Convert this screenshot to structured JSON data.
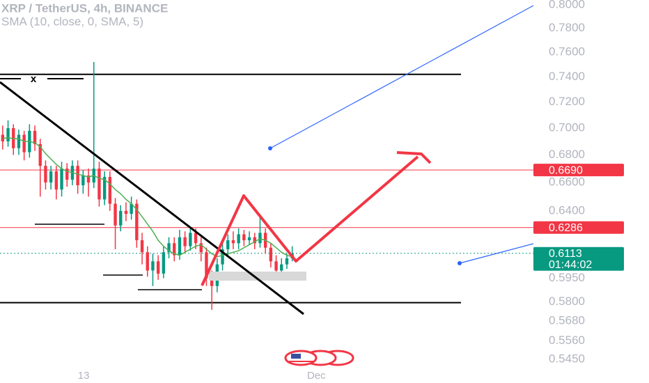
{
  "chart_data": {
    "type": "candlestick",
    "title": "XRP / TetherUS, 4h, BINANCE",
    "log_scale": true,
    "up_color": "#089981",
    "down_color": "#f23645",
    "xlim": [
      -0.5,
      98.2
    ],
    "xticks": [
      {
        "value": 15.1,
        "label": "13"
      },
      {
        "value": 58.5,
        "label": "Dec"
      }
    ],
    "ylim": [
      0.5312,
      0.8042
    ],
    "yticks": [
      {
        "value": 0.8,
        "label": "0.8000"
      },
      {
        "value": 0.78,
        "label": "0.7800"
      },
      {
        "value": 0.76,
        "label": "0.7600"
      },
      {
        "value": 0.74,
        "label": "0.7400"
      },
      {
        "value": 0.72,
        "label": "0.7200"
      },
      {
        "value": 0.7,
        "label": "0.7000"
      },
      {
        "value": 0.68,
        "label": "0.6800"
      },
      {
        "value": 0.66,
        "label": "0.6600"
      },
      {
        "value": 0.64,
        "label": "0.6400"
      },
      {
        "value": 0.595,
        "label": "0.5950"
      },
      {
        "value": 0.58,
        "label": "0.5800"
      },
      {
        "value": 0.568,
        "label": "0.5680"
      },
      {
        "value": 0.556,
        "label": "0.5560"
      },
      {
        "value": 0.545,
        "label": "0.5450"
      }
    ],
    "open": [
      0.695,
      0.69,
      0.7,
      0.685,
      0.695,
      0.682,
      0.698,
      0.688,
      0.672,
      0.66,
      0.668,
      0.655,
      0.67,
      0.662,
      0.672,
      0.658,
      0.665,
      0.66,
      0.67,
      0.648,
      0.664,
      0.645,
      0.63,
      0.64,
      0.638,
      0.645,
      0.62,
      0.612,
      0.6,
      0.606,
      0.598,
      0.612,
      0.618,
      0.61,
      0.622,
      0.616,
      0.625,
      0.618,
      0.612,
      0.595,
      0.59,
      0.604,
      0.614,
      0.62,
      0.618,
      0.624,
      0.62,
      0.622,
      0.618,
      0.625,
      0.615,
      0.606,
      0.6,
      0.604,
      0.608
    ],
    "high": [
      0.702,
      0.706,
      0.703,
      0.699,
      0.698,
      0.703,
      0.702,
      0.692,
      0.676,
      0.672,
      0.672,
      0.675,
      0.674,
      0.676,
      0.676,
      0.669,
      0.67,
      0.752,
      0.675,
      0.668,
      0.668,
      0.649,
      0.644,
      0.646,
      0.65,
      0.648,
      0.625,
      0.616,
      0.611,
      0.61,
      0.616,
      0.622,
      0.622,
      0.627,
      0.626,
      0.628,
      0.628,
      0.622,
      0.615,
      0.6,
      0.608,
      0.619,
      0.624,
      0.626,
      0.628,
      0.627,
      0.626,
      0.625,
      0.636,
      0.628,
      0.618,
      0.61,
      0.608,
      0.611,
      0.616
    ],
    "low": [
      0.684,
      0.686,
      0.68,
      0.68,
      0.676,
      0.678,
      0.683,
      0.65,
      0.655,
      0.655,
      0.648,
      0.65,
      0.657,
      0.658,
      0.652,
      0.652,
      0.65,
      0.656,
      0.643,
      0.644,
      0.64,
      0.614,
      0.626,
      0.633,
      0.634,
      0.615,
      0.604,
      0.596,
      0.59,
      0.594,
      0.595,
      0.608,
      0.606,
      0.607,
      0.612,
      0.613,
      0.614,
      0.606,
      0.59,
      0.575,
      0.586,
      0.6,
      0.61,
      0.614,
      0.614,
      0.616,
      0.617,
      0.614,
      0.615,
      0.611,
      0.602,
      0.596,
      0.597,
      0.601,
      0.606
    ],
    "close": [
      0.69,
      0.7,
      0.685,
      0.695,
      0.682,
      0.698,
      0.688,
      0.672,
      0.66,
      0.668,
      0.655,
      0.67,
      0.662,
      0.672,
      0.658,
      0.665,
      0.66,
      0.67,
      0.648,
      0.664,
      0.645,
      0.63,
      0.64,
      0.638,
      0.645,
      0.62,
      0.612,
      0.6,
      0.606,
      0.598,
      0.612,
      0.618,
      0.61,
      0.622,
      0.616,
      0.625,
      0.618,
      0.612,
      0.595,
      0.59,
      0.604,
      0.614,
      0.62,
      0.618,
      0.624,
      0.62,
      0.622,
      0.618,
      0.625,
      0.615,
      0.606,
      0.6,
      0.604,
      0.608,
      0.611
    ],
    "sma": {
      "name": "SMA (10, close, 0, SMA, 5)",
      "color": "#4caf50",
      "values": [
        0.692,
        0.693,
        0.692,
        0.692,
        0.69,
        0.69,
        0.689,
        0.686,
        0.681,
        0.677,
        0.673,
        0.67,
        0.668,
        0.667,
        0.666,
        0.665,
        0.664,
        0.665,
        0.663,
        0.662,
        0.659,
        0.655,
        0.652,
        0.648,
        0.645,
        0.641,
        0.636,
        0.631,
        0.626,
        0.62,
        0.616,
        0.613,
        0.611,
        0.61,
        0.612,
        0.614,
        0.616,
        0.617,
        0.614,
        0.611,
        0.609,
        0.61,
        0.611,
        0.612,
        0.613,
        0.615,
        0.617,
        0.619,
        0.621,
        0.62,
        0.618,
        0.615,
        0.612,
        0.61,
        0.609
      ]
    },
    "hlines": [
      0.742,
      0.5795
    ],
    "price_labels": [
      {
        "value": 0.669,
        "label": "0.6690",
        "color": "#f23645"
      },
      {
        "value": 0.6286,
        "label": "0.6286",
        "color": "#f23645"
      },
      {
        "value": 0.6113,
        "label": "0.6113",
        "color": "#089981",
        "countdown": "01:44:02"
      }
    ],
    "drawing_label": "x"
  }
}
